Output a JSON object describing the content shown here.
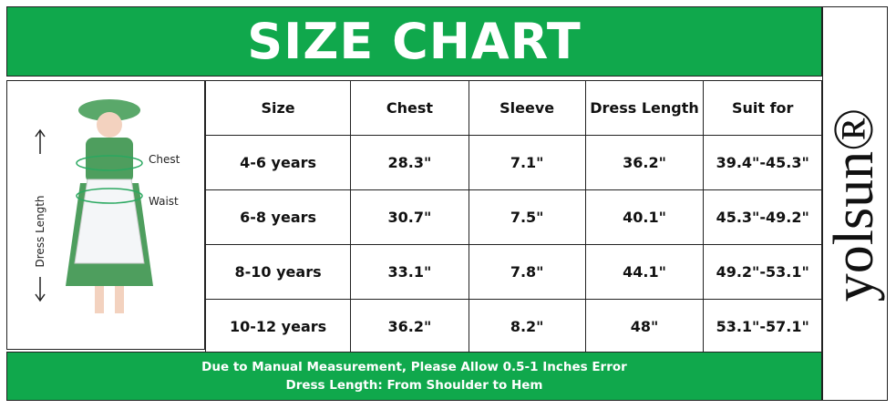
{
  "header": {
    "title": "SIZE CHART"
  },
  "brand": "yolsun®",
  "illustration": {
    "chest": "Chest",
    "waist": "Waist",
    "dress_length": "Dress Length"
  },
  "table": {
    "columns": [
      "Size",
      "Chest",
      "Sleeve",
      "Dress Length",
      "Suit for"
    ],
    "rows": [
      [
        "4-6 years",
        "28.3\"",
        "7.1\"",
        "36.2\"",
        "39.4\"-45.3\""
      ],
      [
        "6-8 years",
        "30.7\"",
        "7.5\"",
        "40.1\"",
        "45.3\"-49.2\""
      ],
      [
        "8-10 years",
        "33.1\"",
        "7.8\"",
        "44.1\"",
        "49.2\"-53.1\""
      ],
      [
        "10-12 years",
        "36.2\"",
        "8.2\"",
        "48\"",
        "53.1\"-57.1\""
      ]
    ]
  },
  "footer": {
    "lines": [
      "Due to Manual Measurement, Please Allow 0.5-1 Inches Error",
      "Dress Length: From Shoulder to Hem"
    ]
  }
}
